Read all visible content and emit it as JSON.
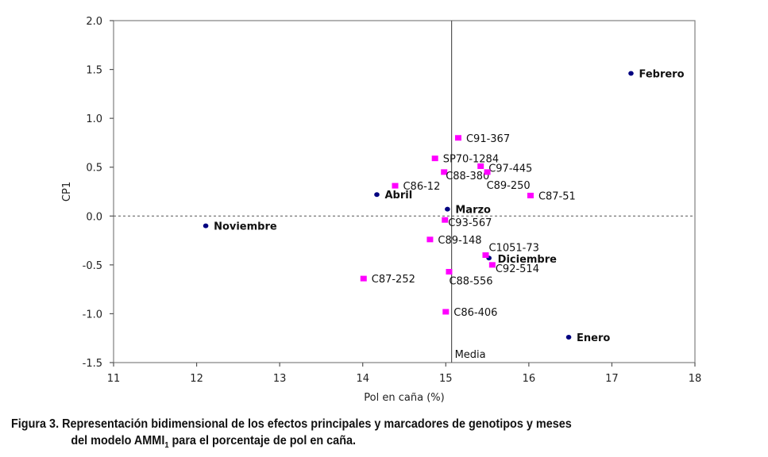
{
  "chart_data": {
    "type": "scatter",
    "title": "",
    "xlabel": "Pol en caña (%)",
    "ylabel": "CP1",
    "xlim": [
      11,
      18
    ],
    "ylim": [
      -1.5,
      2.0
    ],
    "xticks": [
      11,
      12,
      13,
      14,
      15,
      16,
      17,
      18
    ],
    "yticks": [
      2.0,
      1.5,
      1.0,
      0.5,
      0.0,
      -0.5,
      -1.0,
      -1.5
    ],
    "ytick_labels": [
      "2.0",
      "1.5",
      "1.0",
      "0.5",
      "0.0",
      "-0.5",
      "-1.0",
      "-1.5"
    ],
    "grid": false,
    "reference_lines": {
      "horizontal_dashed_y": 0.0,
      "vertical_mean_x": 15.07,
      "vertical_mean_label": "Media"
    },
    "series": [
      {
        "name": "Meses",
        "marker": "circle",
        "color": "#000080",
        "points": [
          {
            "label": "Febrero",
            "x": 17.23,
            "y": 1.46
          },
          {
            "label": "Abril",
            "x": 14.17,
            "y": 0.22
          },
          {
            "label": "Marzo",
            "x": 15.02,
            "y": 0.07
          },
          {
            "label": "Noviembre",
            "x": 12.11,
            "y": -0.1
          },
          {
            "label": "Diciembre",
            "x": 15.52,
            "y": -0.43
          },
          {
            "label": "Enero",
            "x": 16.48,
            "y": -1.24
          }
        ]
      },
      {
        "name": "Genotipos",
        "marker": "square",
        "color": "#FF00FF",
        "points": [
          {
            "label": "C91-367",
            "x": 15.15,
            "y": 0.8
          },
          {
            "label": "SP70-1284",
            "x": 14.87,
            "y": 0.59
          },
          {
            "label": "C97-445",
            "x": 15.42,
            "y": 0.51
          },
          {
            "label": "C88-380",
            "x": 14.98,
            "y": 0.45
          },
          {
            "label": "C89-250",
            "x": 15.5,
            "y": 0.45
          },
          {
            "label": "C86-12",
            "x": 14.39,
            "y": 0.31
          },
          {
            "label": "C87-51",
            "x": 16.02,
            "y": 0.21
          },
          {
            "label": "C93-567",
            "x": 14.99,
            "y": -0.04
          },
          {
            "label": "C89-148",
            "x": 14.81,
            "y": -0.24
          },
          {
            "label": "C1051-73",
            "x": 15.48,
            "y": -0.4
          },
          {
            "label": "C92-514",
            "x": 15.56,
            "y": -0.5
          },
          {
            "label": "C88-556",
            "x": 15.04,
            "y": -0.57
          },
          {
            "label": "C87-252",
            "x": 14.01,
            "y": -0.64
          },
          {
            "label": "C86-406",
            "x": 15.0,
            "y": -0.98
          }
        ]
      }
    ]
  },
  "caption": {
    "line1": "Figura 3. Representación bidimensional de los efectos principales y marcadores de genotipos y meses",
    "line2_pre": "del modelo AMMI",
    "line2_sub": "1",
    "line2_post": " para el porcentaje de pol en caña."
  }
}
